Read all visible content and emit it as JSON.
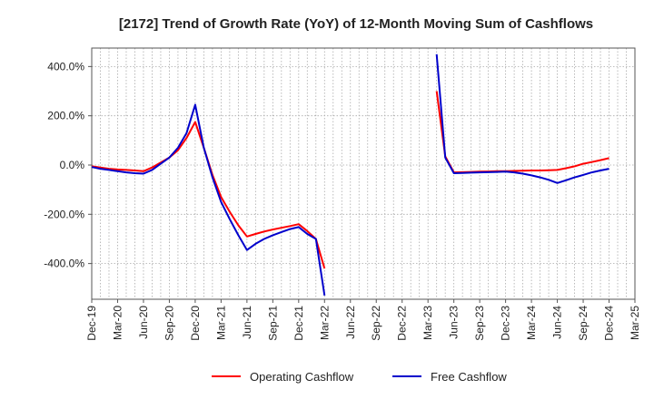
{
  "chart_data": {
    "type": "line",
    "title": "[2172]  Trend of Growth Rate (YoY) of 12-Month Moving Sum of Cashflows",
    "xlabel": "",
    "ylabel": "",
    "x_tick_labels": [
      "Dec-19",
      "Mar-20",
      "Jun-20",
      "Sep-20",
      "Dec-20",
      "Mar-21",
      "Jun-21",
      "Sep-21",
      "Dec-21",
      "Mar-22",
      "Jun-22",
      "Sep-22",
      "Dec-22",
      "Mar-23",
      "Jun-23",
      "Sep-23",
      "Dec-23",
      "Mar-24",
      "Jun-24",
      "Sep-24",
      "Dec-24",
      "Mar-25"
    ],
    "y_ticks": [
      400,
      200,
      0,
      -200,
      -400
    ],
    "y_tick_labels": [
      "400.0%",
      "200.0%",
      "0.0%",
      "-200.0%",
      "-400.0%"
    ],
    "ylim": [
      -545,
      475
    ],
    "grid": true,
    "legend_position": "bottom-center",
    "series": [
      {
        "name": "Operating Cashflow",
        "color": "#ff0000",
        "segments": [
          {
            "x": [
              0,
              1,
              2,
              3,
              4,
              5,
              6,
              7,
              8,
              9,
              10,
              11,
              12,
              13,
              14,
              15,
              16,
              17,
              18,
              19,
              20,
              21,
              22,
              23,
              24,
              25,
              26,
              27
            ],
            "y": [
              -5,
              -10,
              -15,
              -18,
              -20,
              -22,
              -25,
              -10,
              10,
              30,
              60,
              110,
              175,
              70,
              -40,
              -130,
              -190,
              -245,
              -290,
              -280,
              -270,
              -262,
              -255,
              -248,
              -240,
              -268,
              -300,
              -420
            ]
          },
          {
            "x": [
              40,
              41,
              42,
              43,
              44,
              45,
              46,
              47,
              48,
              49,
              50,
              51,
              52,
              53,
              54,
              55,
              56,
              57,
              58,
              59,
              60
            ],
            "y": [
              300,
              35,
              -30,
              -29,
              -28,
              -27,
              -26,
              -25,
              -25,
              -24,
              -23,
              -22,
              -22,
              -21,
              -20,
              -13,
              -5,
              5,
              12,
              20,
              28
            ]
          }
        ]
      },
      {
        "name": "Free Cashflow",
        "color": "#0000cc",
        "segments": [
          {
            "x": [
              0,
              1,
              2,
              3,
              4,
              5,
              6,
              7,
              8,
              9,
              10,
              11,
              12,
              13,
              14,
              15,
              16,
              17,
              18,
              19,
              20,
              21,
              22,
              23,
              24,
              25,
              26,
              27
            ],
            "y": [
              -8,
              -15,
              -20,
              -25,
              -30,
              -33,
              -35,
              -20,
              5,
              30,
              70,
              130,
              245,
              70,
              -50,
              -150,
              -220,
              -285,
              -345,
              -320,
              -300,
              -285,
              -272,
              -260,
              -252,
              -280,
              -300,
              -530
            ]
          },
          {
            "x": [
              40,
              41,
              42,
              43,
              44,
              45,
              46,
              47,
              48,
              49,
              50,
              51,
              52,
              53,
              54,
              55,
              56,
              57,
              58,
              59,
              60
            ],
            "y": [
              450,
              30,
              -33,
              -32,
              -31,
              -30,
              -29,
              -28,
              -27,
              -30,
              -35,
              -42,
              -50,
              -60,
              -73,
              -62,
              -50,
              -40,
              -30,
              -22,
              -15
            ]
          }
        ]
      }
    ]
  }
}
